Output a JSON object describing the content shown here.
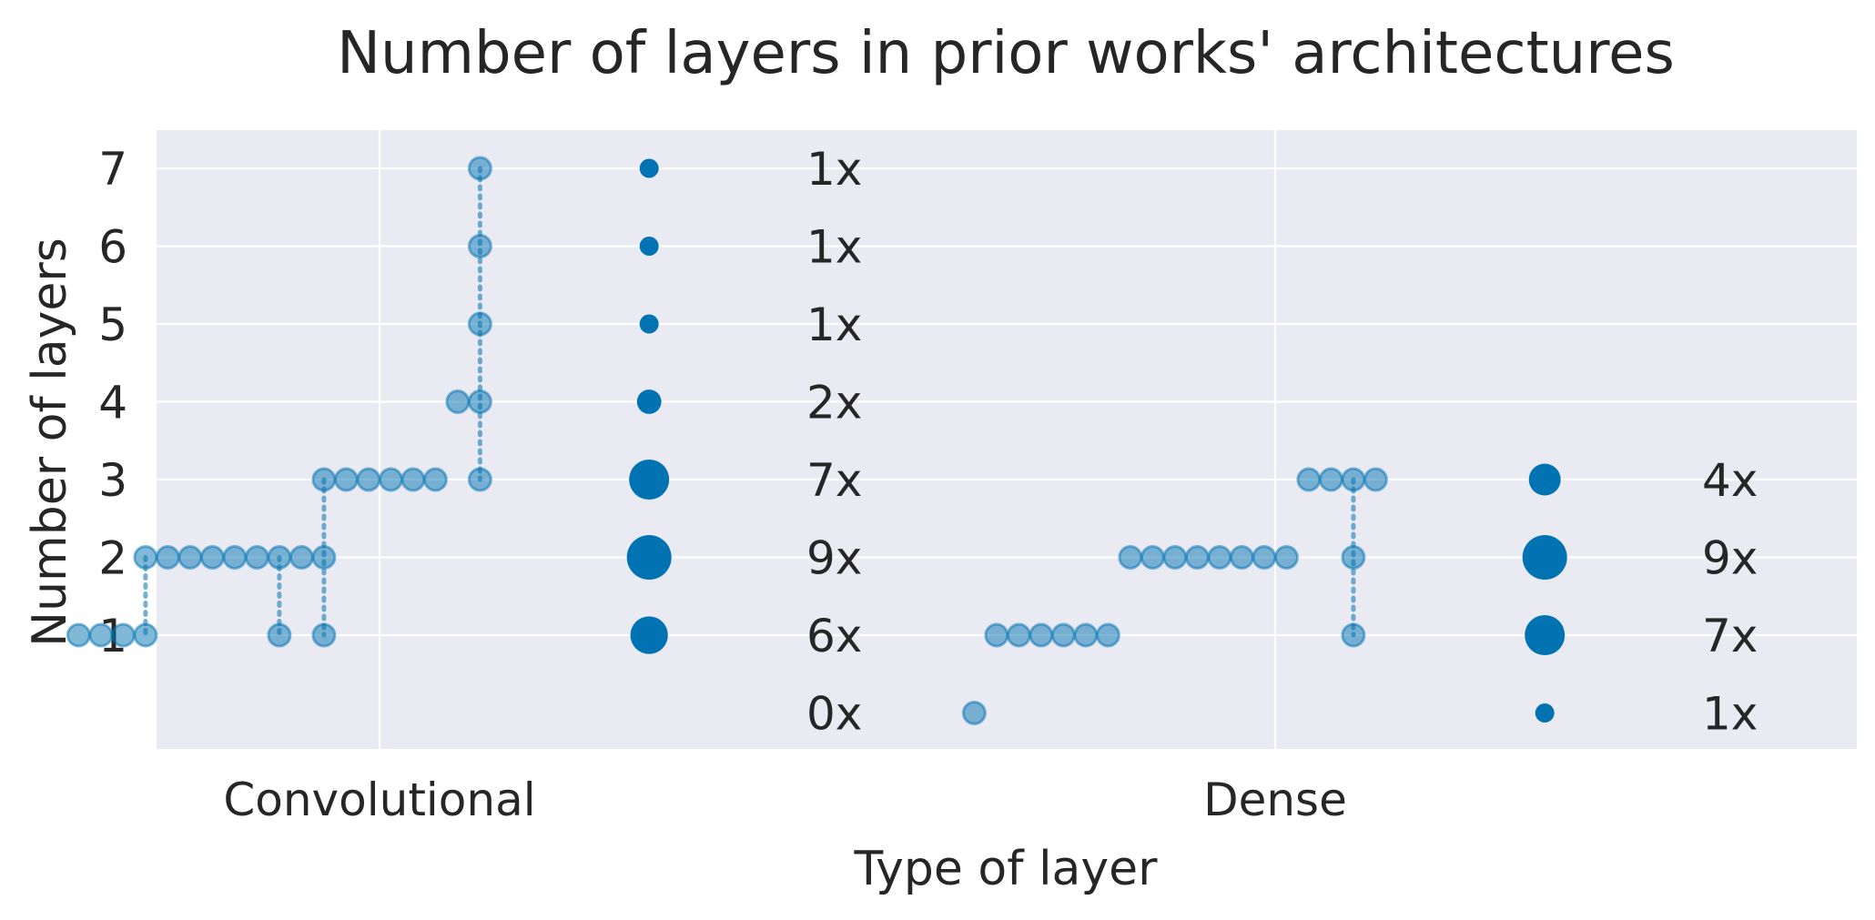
{
  "chart_data": {
    "type": "scatter",
    "title": "Number of layers in prior works' architectures",
    "xlabel": "Type of layer",
    "ylabel": "Number of layers",
    "ylim": [
      -0.5,
      7.5
    ],
    "yticks": [
      1,
      2,
      3,
      4,
      5,
      6,
      7
    ],
    "grid": true,
    "categories": [
      "Convolutional",
      "Dense"
    ],
    "colors": {
      "background": "#eaeaf2",
      "grid": "#ffffff",
      "point": "#0173b2"
    },
    "series": [
      {
        "category": "Convolutional",
        "architectures": [
          [
            1
          ],
          [
            1
          ],
          [
            1
          ],
          [
            2,
            1
          ],
          [
            2
          ],
          [
            2
          ],
          [
            2
          ],
          [
            2
          ],
          [
            2
          ],
          [
            2,
            1
          ],
          [
            2
          ],
          [
            3,
            2,
            1
          ],
          [
            3
          ],
          [
            3
          ],
          [
            3
          ],
          [
            3
          ],
          [
            3
          ],
          [
            4
          ],
          [
            7,
            6,
            5,
            4,
            3
          ]
        ],
        "counts": [
          {
            "layers": 7,
            "label": "1x",
            "n": 1
          },
          {
            "layers": 6,
            "label": "1x",
            "n": 1
          },
          {
            "layers": 5,
            "label": "1x",
            "n": 1
          },
          {
            "layers": 4,
            "label": "2x",
            "n": 2
          },
          {
            "layers": 3,
            "label": "7x",
            "n": 7
          },
          {
            "layers": 2,
            "label": "9x",
            "n": 9
          },
          {
            "layers": 1,
            "label": "6x",
            "n": 6
          },
          {
            "layers": 0,
            "label": "0x",
            "n": 0
          }
        ]
      },
      {
        "category": "Dense",
        "architectures": [
          [
            0
          ],
          [
            1
          ],
          [
            1
          ],
          [
            1
          ],
          [
            1
          ],
          [
            1
          ],
          [
            1
          ],
          [
            2
          ],
          [
            2
          ],
          [
            2
          ],
          [
            2
          ],
          [
            2
          ],
          [
            2
          ],
          [
            2
          ],
          [
            2
          ],
          [
            3
          ],
          [
            3
          ],
          [
            3,
            2,
            1
          ],
          [
            3
          ]
        ],
        "counts": [
          {
            "layers": 3,
            "label": "4x",
            "n": 4
          },
          {
            "layers": 2,
            "label": "9x",
            "n": 9
          },
          {
            "layers": 1,
            "label": "7x",
            "n": 7
          },
          {
            "layers": 0,
            "label": "1x",
            "n": 1
          }
        ]
      }
    ]
  }
}
